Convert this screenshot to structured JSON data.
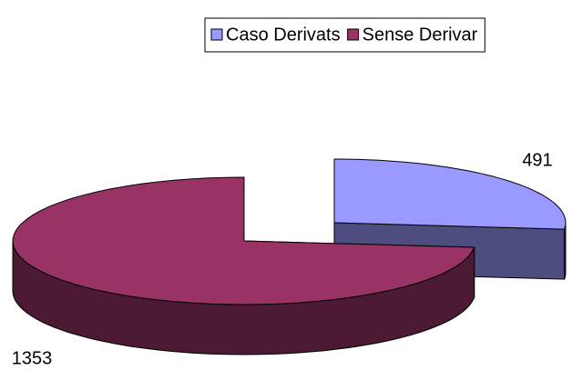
{
  "chart_data": {
    "type": "pie",
    "categories": [
      "Caso Derivats",
      "Sense Derivar"
    ],
    "values": [
      491,
      1353
    ],
    "colors": [
      "#9999ff",
      "#993366"
    ],
    "legend": "top"
  }
}
